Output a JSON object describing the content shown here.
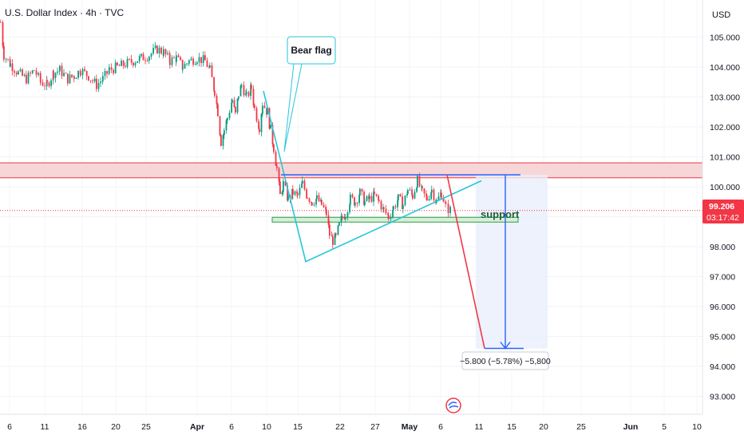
{
  "title": "U.S. Dollar Index · 4h · TVC",
  "currency_label": "USD",
  "price_badge": {
    "value": "99.206",
    "countdown": "03:17:42",
    "color": "#f23645"
  },
  "colors": {
    "up": "#089981",
    "down": "#f23645",
    "resistance_fill": "#f7d6d8",
    "resistance_line": "#f23645",
    "support_fill": "#d7eed9",
    "support_line": "#2e9e45",
    "trend": "#26c6da",
    "flag_top": "#2962ff",
    "projection": "#f23645",
    "measure": "#2962ff",
    "measure_fill": "#e8effb"
  },
  "annotations": {
    "bear_flag": "Bear flag",
    "support": "support",
    "measure_label": "−5.800 (−5.78%) −5,800"
  },
  "chart_data": {
    "type": "candlestick",
    "symbol": "U.S. Dollar Index",
    "interval": "4h",
    "ylim": [
      92.4,
      106.2
    ],
    "y_ticks": [
      "105.000",
      "104.000",
      "103.000",
      "102.000",
      "101.000",
      "100.000",
      "99.000",
      "98.000",
      "97.000",
      "96.000",
      "95.000",
      "94.000",
      "93.000"
    ],
    "x_ticks": [
      {
        "label": "6",
        "month": false
      },
      {
        "label": "11",
        "month": false
      },
      {
        "label": "16",
        "month": false
      },
      {
        "label": "20",
        "month": false
      },
      {
        "label": "25",
        "month": false
      },
      {
        "label": "Apr",
        "month": true
      },
      {
        "label": "6",
        "month": false
      },
      {
        "label": "10",
        "month": false
      },
      {
        "label": "15",
        "month": false
      },
      {
        "label": "22",
        "month": false
      },
      {
        "label": "27",
        "month": false
      },
      {
        "label": "May",
        "month": true
      },
      {
        "label": "6",
        "month": false
      },
      {
        "label": "11",
        "month": false
      },
      {
        "label": "15",
        "month": false
      },
      {
        "label": "20",
        "month": false
      },
      {
        "label": "25",
        "month": false
      },
      {
        "label": "Jun",
        "month": true
      },
      {
        "label": "5",
        "month": false
      },
      {
        "label": "10",
        "month": false
      }
    ],
    "last_price": 99.206,
    "resistance_zone": [
      100.3,
      100.8
    ],
    "support_zone": [
      98.82,
      98.98
    ],
    "close_path": [
      [
        0,
        105.5
      ],
      [
        4,
        104.4
      ],
      [
        12,
        104.1
      ],
      [
        22,
        103.8
      ],
      [
        32,
        103.6
      ],
      [
        42,
        103.9
      ],
      [
        50,
        103.5
      ],
      [
        58,
        103.4
      ],
      [
        66,
        103.8
      ],
      [
        74,
        103.9
      ],
      [
        84,
        103.6
      ],
      [
        92,
        103.7
      ],
      [
        100,
        103.9
      ],
      [
        110,
        103.7
      ],
      [
        120,
        103.4
      ],
      [
        128,
        103.6
      ],
      [
        136,
        103.9
      ],
      [
        146,
        104.0
      ],
      [
        156,
        104.1
      ],
      [
        166,
        104.2
      ],
      [
        176,
        104.3
      ],
      [
        186,
        104.4
      ],
      [
        196,
        104.6
      ],
      [
        204,
        104.5
      ],
      [
        212,
        104.2
      ],
      [
        220,
        104.3
      ],
      [
        228,
        104.0
      ],
      [
        236,
        104.2
      ],
      [
        246,
        104.3
      ],
      [
        256,
        104.2
      ],
      [
        262,
        103.9
      ],
      [
        268,
        103.2
      ],
      [
        272,
        102.5
      ],
      [
        276,
        101.5
      ],
      [
        280,
        101.9
      ],
      [
        284,
        102.3
      ],
      [
        290,
        102.9
      ],
      [
        294,
        102.4
      ],
      [
        298,
        103.1
      ],
      [
        302,
        103.4
      ],
      [
        308,
        103.0
      ],
      [
        314,
        103.3
      ],
      [
        318,
        102.6
      ],
      [
        324,
        102.0
      ],
      [
        328,
        102.8
      ],
      [
        334,
        102.5
      ],
      [
        338,
        101.9
      ],
      [
        342,
        101.3
      ],
      [
        346,
        100.6
      ],
      [
        350,
        99.7
      ],
      [
        354,
        100.1
      ],
      [
        360,
        99.6
      ],
      [
        366,
        99.8
      ],
      [
        372,
        99.7
      ],
      [
        378,
        100.1
      ],
      [
        384,
        99.7
      ],
      [
        390,
        99.5
      ],
      [
        396,
        99.6
      ],
      [
        402,
        99.4
      ],
      [
        408,
        99.1
      ],
      [
        412,
        98.4
      ],
      [
        416,
        98.2
      ],
      [
        420,
        98.3
      ],
      [
        424,
        98.7
      ],
      [
        428,
        99.0
      ],
      [
        432,
        99.1
      ],
      [
        438,
        99.6
      ],
      [
        444,
        99.5
      ],
      [
        450,
        99.8
      ],
      [
        456,
        99.5
      ],
      [
        462,
        99.6
      ],
      [
        468,
        99.7
      ],
      [
        474,
        99.5
      ],
      [
        480,
        99.2
      ],
      [
        486,
        99.0
      ],
      [
        492,
        99.3
      ],
      [
        498,
        99.6
      ],
      [
        504,
        99.4
      ],
      [
        510,
        99.9
      ],
      [
        516,
        99.7
      ],
      [
        522,
        100.2
      ],
      [
        528,
        99.8
      ],
      [
        534,
        99.6
      ],
      [
        540,
        99.9
      ],
      [
        546,
        99.5
      ],
      [
        552,
        99.8
      ],
      [
        558,
        99.3
      ],
      [
        564,
        99.206
      ]
    ]
  }
}
